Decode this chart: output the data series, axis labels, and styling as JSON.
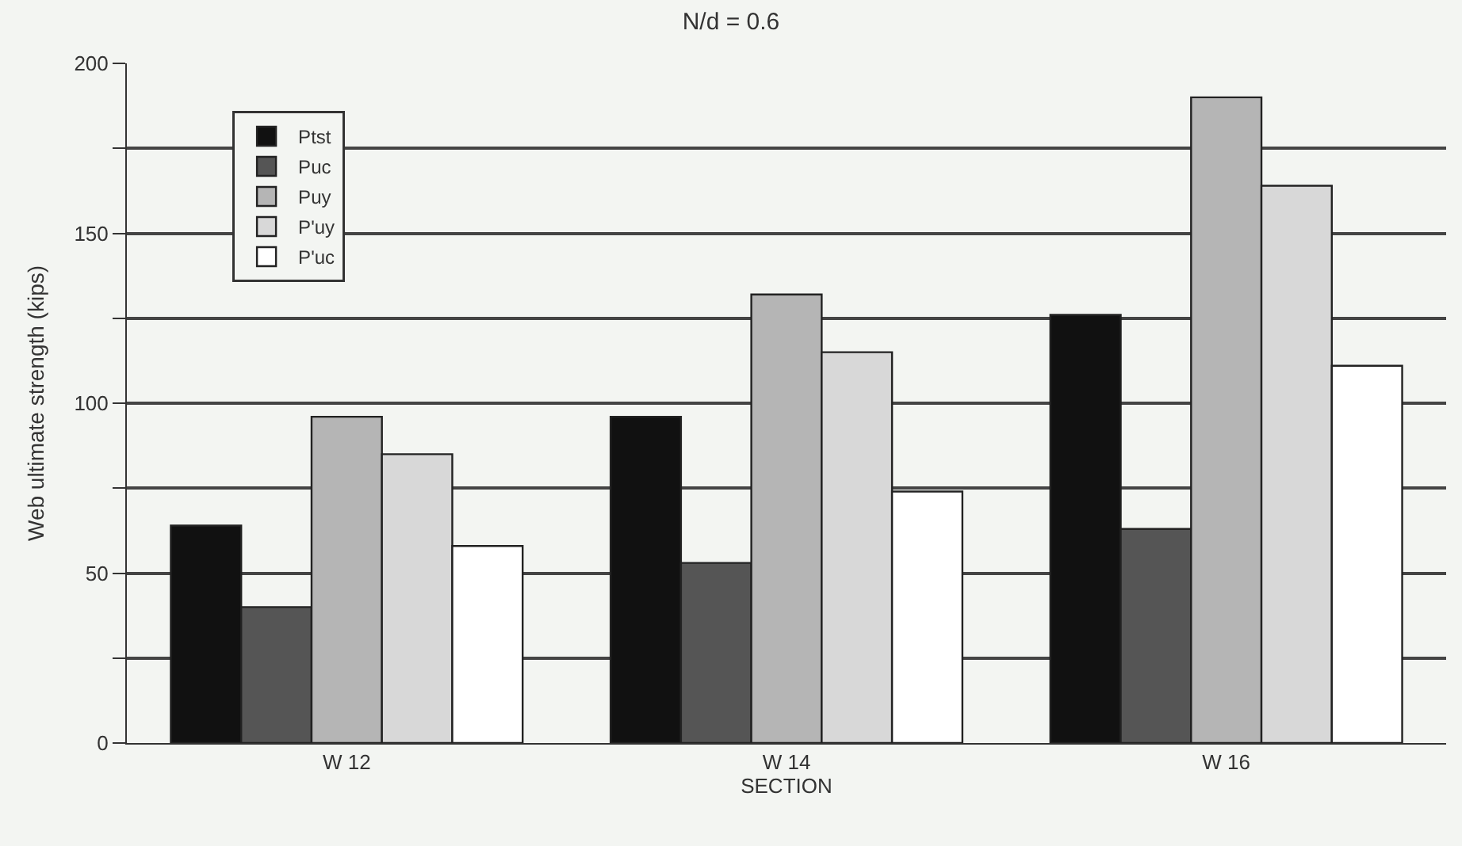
{
  "chart_data": {
    "type": "bar",
    "title": "N/d = 0.6",
    "xlabel": "SECTION",
    "ylabel": "Web ultimate strength (kips)",
    "categories": [
      "W 12",
      "W 14",
      "W 16"
    ],
    "series": [
      {
        "name": "Ptst",
        "color": "#111111",
        "values": [
          64,
          96,
          126
        ]
      },
      {
        "name": "Puc",
        "color": "#555555",
        "values": [
          40,
          53,
          63
        ]
      },
      {
        "name": "Puy",
        "color": "#b5b5b5",
        "values": [
          96,
          132,
          190
        ]
      },
      {
        "name": "P'uy",
        "color": "#d8d8d8",
        "values": [
          85,
          115,
          164
        ]
      },
      {
        "name": "P'uc",
        "color": "#ffffff",
        "values": [
          58,
          74,
          111
        ]
      }
    ],
    "ylim": [
      0,
      200
    ],
    "yticks": [
      0,
      {
        "value": 25,
        "label": null
      },
      50,
      {
        "value": 75,
        "label": null
      },
      100,
      {
        "value": 125,
        "label": null
      },
      150,
      {
        "value": 175,
        "label": null
      },
      200
    ],
    "grid": "y",
    "legend": "top left"
  }
}
